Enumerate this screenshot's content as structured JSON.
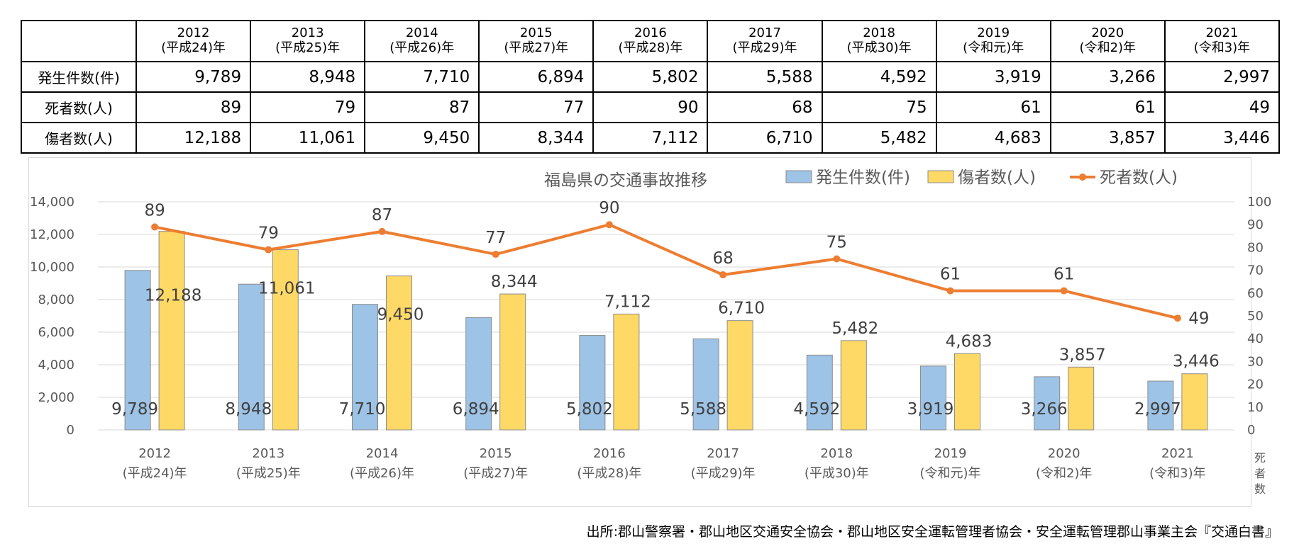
{
  "table": {
    "corner": "",
    "years": [
      {
        "year": "2012",
        "era": "(平成24)年"
      },
      {
        "year": "2013",
        "era": "(平成25)年"
      },
      {
        "year": "2014",
        "era": "(平成26)年"
      },
      {
        "year": "2015",
        "era": "(平成27)年"
      },
      {
        "year": "2016",
        "era": "(平成28)年"
      },
      {
        "year": "2017",
        "era": "(平成29)年"
      },
      {
        "year": "2018",
        "era": "(平成30)年"
      },
      {
        "year": "2019",
        "era": "(令和元)年"
      },
      {
        "year": "2020",
        "era": "(令和2)年"
      },
      {
        "year": "2021",
        "era": "(令和3)年"
      }
    ],
    "rows": [
      {
        "label": "発生件数(件)",
        "values": [
          "9,789",
          "8,948",
          "7,710",
          "6,894",
          "5,802",
          "5,588",
          "4,592",
          "3,919",
          "3,266",
          "2,997"
        ]
      },
      {
        "label": "死者数(人)",
        "values": [
          "89",
          "79",
          "87",
          "77",
          "90",
          "68",
          "75",
          "61",
          "61",
          "49"
        ]
      },
      {
        "label": "傷者数(人)",
        "values": [
          "12,188",
          "11,061",
          "9,450",
          "8,344",
          "7,112",
          "6,710",
          "5,482",
          "4,683",
          "3,857",
          "3,446"
        ]
      }
    ]
  },
  "chart_data": {
    "type": "bar",
    "title": "福島県の交通事故推移",
    "categories": [
      {
        "year": "2012",
        "era": "(平成24)年"
      },
      {
        "year": "2013",
        "era": "(平成25)年"
      },
      {
        "year": "2014",
        "era": "(平成26)年"
      },
      {
        "year": "2015",
        "era": "(平成27)年"
      },
      {
        "year": "2016",
        "era": "(平成28)年"
      },
      {
        "year": "2017",
        "era": "(平成29)年"
      },
      {
        "year": "2018",
        "era": "(平成30)年"
      },
      {
        "year": "2019",
        "era": "(令和元)年"
      },
      {
        "year": "2020",
        "era": "(令和2)年"
      },
      {
        "year": "2021",
        "era": "(令和3)年"
      }
    ],
    "series": [
      {
        "name": "発生件数(件)",
        "type": "bar",
        "axis": "left",
        "color": "#9dc3e6",
        "values": [
          9789,
          8948,
          7710,
          6894,
          5802,
          5588,
          4592,
          3919,
          3266,
          2997
        ],
        "labels": [
          "9,789",
          "8,948",
          "7,710",
          "6,894",
          "5,802",
          "5,588",
          "4,592",
          "3,919",
          "3,266",
          "2,997"
        ]
      },
      {
        "name": "傷者数(人)",
        "type": "bar",
        "axis": "left",
        "color": "#ffd966",
        "values": [
          12188,
          11061,
          9450,
          8344,
          7112,
          6710,
          5482,
          4683,
          3857,
          3446
        ],
        "labels": [
          "12,188",
          "11,061",
          "9,450",
          "8,344",
          "7,112",
          "6,710",
          "5,482",
          "4,683",
          "3,857",
          "3,446"
        ]
      },
      {
        "name": "死者数(人)",
        "type": "line",
        "axis": "right",
        "color": "#ed7d31",
        "values": [
          89,
          79,
          87,
          77,
          90,
          68,
          75,
          61,
          61,
          49
        ],
        "labels": [
          "89",
          "79",
          "87",
          "77",
          "90",
          "68",
          "75",
          "61",
          "61",
          "49"
        ]
      }
    ],
    "y_left": {
      "min": 0,
      "max": 14000,
      "step": 2000,
      "ticks": [
        "0",
        "2,000",
        "4,000",
        "6,000",
        "8,000",
        "10,000",
        "12,000",
        "14,000"
      ]
    },
    "y_right": {
      "min": 0,
      "max": 100,
      "step": 10,
      "label": "死者数",
      "ticks": [
        "0",
        "10",
        "20",
        "30",
        "40",
        "50",
        "60",
        "70",
        "80",
        "90",
        "100"
      ]
    },
    "grid": true,
    "legend_position": "top-right"
  },
  "source": "出所:郡山警察署・郡山地区交通安全協会・郡山地区安全運転管理者協会・安全運転管理郡山事業主会『交通白書』"
}
